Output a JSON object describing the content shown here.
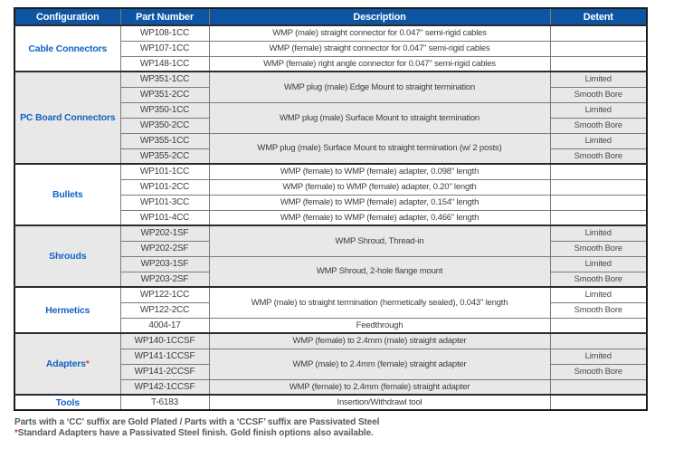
{
  "table": {
    "headers": [
      "Configuration",
      "Part Number",
      "Description",
      "Detent"
    ],
    "groups": [
      {
        "configuration": "Cable Connectors",
        "shaded": false,
        "rows": [
          {
            "part": "WP108-1CC",
            "desc": "WMP (male) straight connector for 0.047\" semi-rigid cables",
            "desc_span": 1,
            "detent": ""
          },
          {
            "part": "WP107-1CC",
            "desc": "WMP (female) straight connector for 0.047\" semi-rigid cables",
            "desc_span": 1,
            "detent": ""
          },
          {
            "part": "WP148-1CC",
            "desc": "WMP (female) right angle connector for 0.047\" semi-rigid cables",
            "desc_span": 1,
            "detent": ""
          }
        ]
      },
      {
        "configuration": "PC Board Connectors",
        "shaded": true,
        "rows": [
          {
            "part": "WP351-1CC",
            "desc": "WMP plug (male) Edge Mount to straight termination",
            "desc_span": 2,
            "detent": "Limited"
          },
          {
            "part": "WP351-2CC",
            "desc": null,
            "detent": "Smooth Bore"
          },
          {
            "part": "WP350-1CC",
            "desc": "WMP plug (male) Surface Mount to straight termination",
            "desc_span": 2,
            "detent": "Limited"
          },
          {
            "part": "WP350-2CC",
            "desc": null,
            "detent": "Smooth Bore"
          },
          {
            "part": "WP355-1CC",
            "desc": "WMP plug (male) Surface Mount  to straight termination (w/ 2 posts)",
            "desc_span": 2,
            "detent": "Limited"
          },
          {
            "part": "WP355-2CC",
            "desc": null,
            "detent": "Smooth Bore"
          }
        ]
      },
      {
        "configuration": "Bullets",
        "shaded": false,
        "rows": [
          {
            "part": "WP101-1CC",
            "desc": "WMP (female) to WMP (female) adapter, 0.098\" length",
            "desc_span": 1,
            "detent": ""
          },
          {
            "part": "WP101-2CC",
            "desc": "WMP (female) to WMP (female) adapter, 0.20\" length",
            "desc_span": 1,
            "detent": ""
          },
          {
            "part": "WP101-3CC",
            "desc": "WMP (female) to WMP (female) adapter, 0.154\" length",
            "desc_span": 1,
            "detent": ""
          },
          {
            "part": "WP101-4CC",
            "desc": "WMP (female) to WMP (female) adapter, 0.466\" length",
            "desc_span": 1,
            "detent": ""
          }
        ]
      },
      {
        "configuration": "Shrouds",
        "shaded": true,
        "rows": [
          {
            "part": "WP202-1SF",
            "desc": "WMP Shroud, Thread-in",
            "desc_span": 2,
            "detent": "Limited"
          },
          {
            "part": "WP202-2SF",
            "desc": null,
            "detent": "Smooth Bore"
          },
          {
            "part": "WP203-1SF",
            "desc": "WMP Shroud, 2-hole flange mount",
            "desc_span": 2,
            "detent": "Limited"
          },
          {
            "part": "WP203-2SF",
            "desc": null,
            "detent": "Smooth Bore"
          }
        ]
      },
      {
        "configuration": "Hermetics",
        "shaded": false,
        "rows": [
          {
            "part": "WP122-1CC",
            "desc": "WMP (male) to straight termination (hermetically sealed), 0.043\" length",
            "desc_span": 2,
            "detent": "Limited"
          },
          {
            "part": "WP122-2CC",
            "desc": null,
            "detent": "Smooth Bore"
          },
          {
            "part": "4004-17",
            "desc": "Feedthrough",
            "desc_span": 1,
            "detent": ""
          }
        ]
      },
      {
        "configuration": "Adapters",
        "asterisk": "*",
        "shaded": true,
        "rows": [
          {
            "part": "WP140-1CCSF",
            "desc": "WMP (female) to 2.4mm (male) straight adapter",
            "desc_span": 1,
            "detent": ""
          },
          {
            "part": "WP141-1CCSF",
            "desc": "WMP (male) to 2.4mm (female) straight adapter",
            "desc_span": 2,
            "detent": "Limited"
          },
          {
            "part": "WP141-2CCSF",
            "desc": null,
            "detent": "Smooth Bore"
          },
          {
            "part": "WP142-1CCSF",
            "desc": "WMP (female) to 2.4mm (female) straight adapter",
            "desc_span": 1,
            "detent": ""
          }
        ]
      },
      {
        "configuration": "Tools",
        "shaded": false,
        "rows": [
          {
            "part": "T-6183",
            "desc": "Insertion/Withdrawl tool",
            "desc_span": 1,
            "detent": ""
          }
        ]
      }
    ]
  },
  "footnotes": {
    "line1": "Parts with a ‘CC’ suffix are Gold Plated  /  Parts with a ‘CCSF’ suffix are Passivated Steel",
    "line2_asterisk": "*",
    "line2": "Standard Adapters have a Passivated Steel finish. Gold finish options also available."
  },
  "colors": {
    "header_bg": "#0d55a3",
    "group_label": "#1263c6",
    "shaded_row_bg": "#e8e8e8",
    "accent_red": "#e03a3a"
  }
}
